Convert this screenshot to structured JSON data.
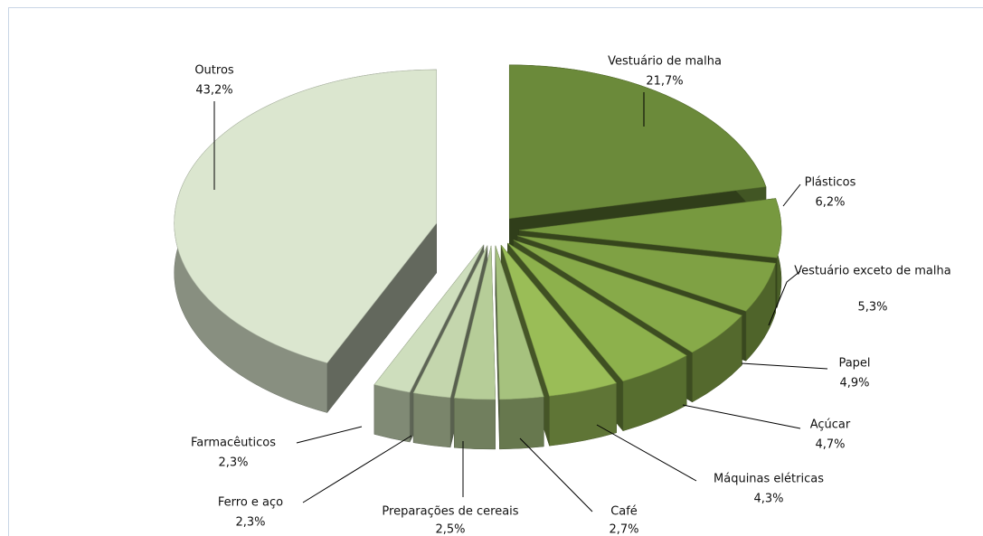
{
  "chart_data": {
    "type": "pie",
    "categories": [
      "Vestuário de malha",
      "Plásticos",
      "Vestuário exceto de malha",
      "Papel",
      "Açúcar",
      "Máquinas elétricas",
      "Café",
      "Preparações de cereais",
      "Ferro e aço",
      "Farmacêuticos",
      "Outros"
    ],
    "values": [
      21.7,
      6.2,
      5.3,
      4.9,
      4.7,
      4.3,
      2.7,
      2.5,
      2.3,
      2.3,
      43.2
    ],
    "value_labels": [
      "21,7%",
      "6,2%",
      "5,3%",
      "4,9%",
      "4,7%",
      "4,3%",
      "2,7%",
      "2,5%",
      "2,3%",
      "2,3%",
      "43,2%"
    ],
    "colors": [
      "#6b8a3a",
      "#77993f",
      "#7fa144",
      "#87aa49",
      "#8db14c",
      "#9abd57",
      "#a6c27e",
      "#b6cd98",
      "#c4d6ad",
      "#cedebd",
      "#dbe6cf"
    ]
  }
}
